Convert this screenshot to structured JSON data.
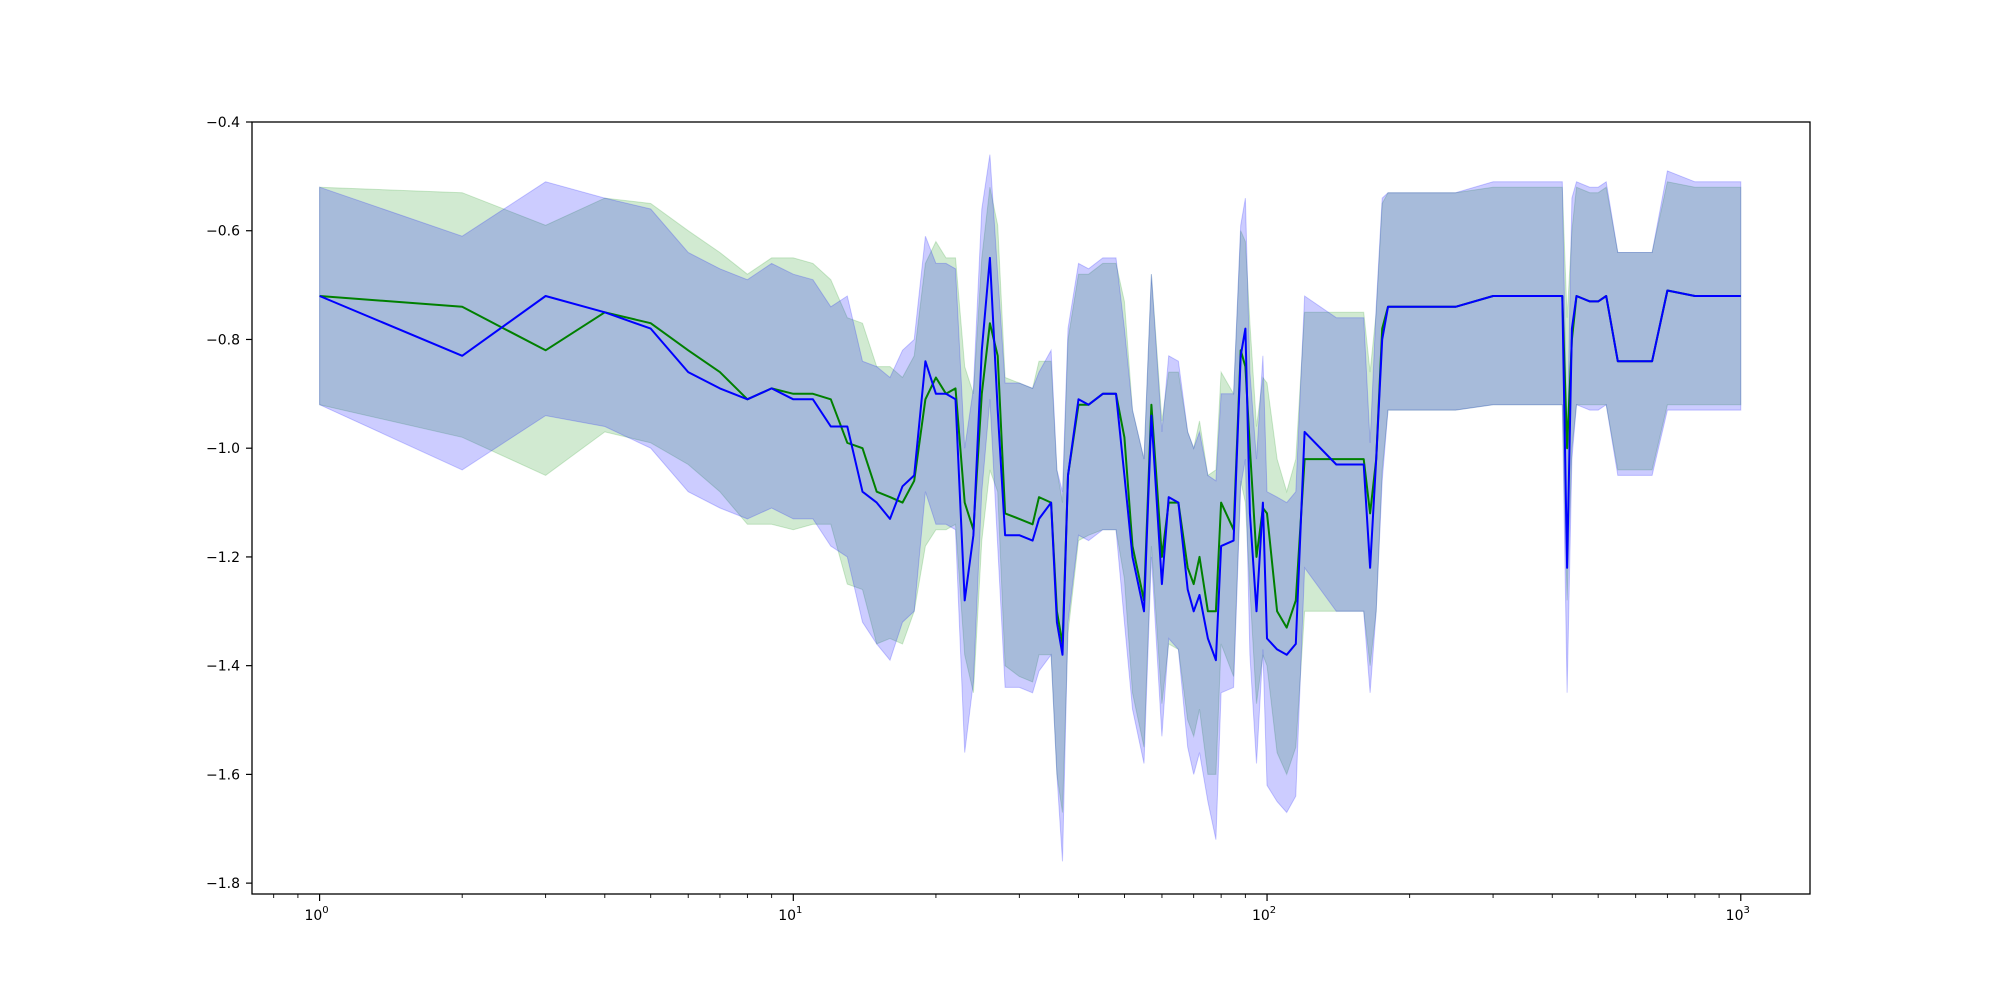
{
  "chart_data": {
    "type": "line",
    "title": "",
    "xlabel": "",
    "ylabel": "",
    "xscale": "log",
    "xlim": [
      0.72,
      1400
    ],
    "ylim": [
      -1.82,
      -0.4
    ],
    "x_ticks": [
      {
        "value": 1,
        "base": "10",
        "exp": "0"
      },
      {
        "value": 10,
        "base": "10",
        "exp": "1"
      },
      {
        "value": 100,
        "base": "10",
        "exp": "2"
      },
      {
        "value": 1000,
        "base": "10",
        "exp": "3"
      }
    ],
    "y_ticks": [
      {
        "value": -0.4,
        "label": "−0.4"
      },
      {
        "value": -0.6,
        "label": "−0.6"
      },
      {
        "value": -0.8,
        "label": "−0.8"
      },
      {
        "value": -1.0,
        "label": "−1.0"
      },
      {
        "value": -1.2,
        "label": "−1.2"
      },
      {
        "value": -1.4,
        "label": "−1.4"
      },
      {
        "value": -1.6,
        "label": "−1.6"
      },
      {
        "value": -1.8,
        "label": "−1.8"
      }
    ],
    "grid": false,
    "legend": "none",
    "series": [
      {
        "color": "#008000",
        "band_color": "#2ca02c",
        "band_alpha": 0.22,
        "x": [
          1,
          2,
          3,
          4,
          5,
          6,
          7,
          8,
          9,
          10,
          11,
          12,
          13,
          14,
          15,
          16,
          17,
          18,
          19,
          20,
          21,
          22,
          23,
          24,
          25,
          26,
          27,
          28,
          30,
          32,
          33,
          35,
          36,
          37,
          38,
          40,
          42,
          45,
          48,
          50,
          52,
          55,
          57,
          60,
          62,
          65,
          68,
          70,
          72,
          75,
          78,
          80,
          85,
          88,
          90,
          92,
          95,
          98,
          100,
          105,
          110,
          115,
          120,
          140,
          160,
          165,
          170,
          175,
          180,
          200,
          250,
          300,
          320,
          330,
          350,
          400,
          420,
          430,
          440,
          450,
          480,
          500,
          520,
          550,
          600,
          650,
          700,
          800,
          1000
        ],
        "y": [
          -0.72,
          -0.74,
          -0.82,
          -0.75,
          -0.77,
          -0.82,
          -0.86,
          -0.91,
          -0.89,
          -0.9,
          -0.9,
          -0.91,
          -0.99,
          -1.0,
          -1.08,
          -1.09,
          -1.1,
          -1.06,
          -0.91,
          -0.87,
          -0.9,
          -0.89,
          -1.1,
          -1.15,
          -0.9,
          -0.77,
          -0.83,
          -1.12,
          -1.13,
          -1.14,
          -1.09,
          -1.1,
          -1.3,
          -1.36,
          -1.05,
          -0.92,
          -0.92,
          -0.9,
          -0.9,
          -0.98,
          -1.18,
          -1.28,
          -0.92,
          -1.2,
          -1.1,
          -1.1,
          -1.22,
          -1.25,
          -1.2,
          -1.3,
          -1.3,
          -1.1,
          -1.15,
          -0.82,
          -0.85,
          -1.0,
          -1.2,
          -1.11,
          -1.12,
          -1.3,
          -1.33,
          -1.28,
          -1.02,
          -1.02,
          -1.02,
          -1.12,
          -1.02,
          -0.78,
          -0.74,
          -0.74,
          -0.74,
          -0.72,
          -0.72,
          -0.72,
          -0.72,
          -0.72,
          -0.72,
          -1.0,
          -0.8,
          -0.72,
          -0.73,
          -0.73,
          -0.72,
          -0.84,
          -0.84,
          -0.84,
          -0.71,
          -0.72,
          -0.72
        ],
        "lower": [
          -0.92,
          -0.98,
          -1.05,
          -0.97,
          -0.99,
          -1.03,
          -1.08,
          -1.14,
          -1.14,
          -1.15,
          -1.14,
          -1.14,
          -1.25,
          -1.26,
          -1.36,
          -1.35,
          -1.36,
          -1.3,
          -1.18,
          -1.15,
          -1.15,
          -1.14,
          -1.38,
          -1.45,
          -1.17,
          -1.04,
          -1.08,
          -1.4,
          -1.42,
          -1.43,
          -1.38,
          -1.38,
          -1.6,
          -1.67,
          -1.34,
          -1.17,
          -1.16,
          -1.15,
          -1.15,
          -1.24,
          -1.45,
          -1.55,
          -1.18,
          -1.47,
          -1.36,
          -1.37,
          -1.5,
          -1.53,
          -1.48,
          -1.6,
          -1.6,
          -1.36,
          -1.42,
          -1.06,
          -1.1,
          -1.26,
          -1.47,
          -1.38,
          -1.4,
          -1.56,
          -1.6,
          -1.55,
          -1.3,
          -1.3,
          -1.3,
          -1.4,
          -1.3,
          -1.04,
          -0.93,
          -0.93,
          -0.93,
          -0.92,
          -0.92,
          -0.92,
          -0.92,
          -0.92,
          -0.92,
          -1.28,
          -1.0,
          -0.92,
          -0.92,
          -0.92,
          -0.92,
          -1.04,
          -1.04,
          -1.04,
          -0.92,
          -0.92,
          -0.92
        ],
        "upper": [
          -0.52,
          -0.53,
          -0.59,
          -0.54,
          -0.55,
          -0.6,
          -0.64,
          -0.68,
          -0.65,
          -0.65,
          -0.66,
          -0.69,
          -0.76,
          -0.77,
          -0.85,
          -0.85,
          -0.87,
          -0.83,
          -0.66,
          -0.62,
          -0.65,
          -0.65,
          -0.85,
          -0.9,
          -0.65,
          -0.52,
          -0.59,
          -0.87,
          -0.88,
          -0.89,
          -0.84,
          -0.84,
          -1.04,
          -1.1,
          -0.8,
          -0.68,
          -0.68,
          -0.66,
          -0.66,
          -0.73,
          -0.93,
          -1.02,
          -0.68,
          -0.95,
          -0.86,
          -0.86,
          -0.97,
          -1.0,
          -0.95,
          -1.05,
          -1.04,
          -0.86,
          -0.9,
          -0.6,
          -0.62,
          -0.77,
          -0.96,
          -0.87,
          -0.88,
          -1.02,
          -1.08,
          -1.02,
          -0.75,
          -0.75,
          -0.75,
          -0.86,
          -0.75,
          -0.55,
          -0.53,
          -0.53,
          -0.53,
          -0.52,
          -0.52,
          -0.52,
          -0.52,
          -0.52,
          -0.52,
          -0.76,
          -0.6,
          -0.52,
          -0.53,
          -0.53,
          -0.52,
          -0.64,
          -0.64,
          -0.64,
          -0.51,
          -0.52,
          -0.52
        ]
      },
      {
        "color": "#0000ff",
        "band_color": "#0000ff",
        "band_alpha": 0.2,
        "x": [
          1,
          2,
          3,
          4,
          5,
          6,
          7,
          8,
          9,
          10,
          11,
          12,
          13,
          14,
          15,
          16,
          17,
          18,
          19,
          20,
          21,
          22,
          23,
          24,
          25,
          26,
          27,
          28,
          30,
          32,
          33,
          35,
          36,
          37,
          38,
          40,
          42,
          45,
          48,
          50,
          52,
          55,
          57,
          60,
          62,
          65,
          68,
          70,
          72,
          75,
          78,
          80,
          85,
          88,
          90,
          92,
          95,
          98,
          100,
          105,
          110,
          115,
          120,
          140,
          160,
          165,
          170,
          175,
          180,
          200,
          250,
          300,
          320,
          330,
          350,
          400,
          420,
          430,
          440,
          450,
          480,
          500,
          520,
          550,
          600,
          650,
          700,
          800,
          1000
        ],
        "y": [
          -0.72,
          -0.83,
          -0.72,
          -0.75,
          -0.78,
          -0.86,
          -0.89,
          -0.91,
          -0.89,
          -0.91,
          -0.91,
          -0.96,
          -0.96,
          -1.08,
          -1.1,
          -1.13,
          -1.07,
          -1.05,
          -0.84,
          -0.9,
          -0.9,
          -0.91,
          -1.28,
          -1.16,
          -0.82,
          -0.65,
          -0.93,
          -1.16,
          -1.16,
          -1.17,
          -1.13,
          -1.1,
          -1.32,
          -1.38,
          -1.05,
          -0.91,
          -0.92,
          -0.9,
          -0.9,
          -1.05,
          -1.2,
          -1.3,
          -0.94,
          -1.25,
          -1.09,
          -1.1,
          -1.26,
          -1.3,
          -1.27,
          -1.35,
          -1.39,
          -1.18,
          -1.17,
          -0.83,
          -0.78,
          -1.12,
          -1.3,
          -1.1,
          -1.35,
          -1.37,
          -1.38,
          -1.36,
          -0.97,
          -1.03,
          -1.03,
          -1.22,
          -1.02,
          -0.8,
          -0.74,
          -0.74,
          -0.74,
          -0.72,
          -0.72,
          -0.72,
          -0.72,
          -0.72,
          -0.72,
          -1.22,
          -0.78,
          -0.72,
          -0.73,
          -0.73,
          -0.72,
          -0.84,
          -0.84,
          -0.84,
          -0.71,
          -0.72,
          -0.72
        ],
        "lower": [
          -0.92,
          -1.04,
          -0.94,
          -0.96,
          -1.0,
          -1.08,
          -1.11,
          -1.13,
          -1.11,
          -1.13,
          -1.13,
          -1.18,
          -1.2,
          -1.32,
          -1.36,
          -1.39,
          -1.32,
          -1.3,
          -1.08,
          -1.14,
          -1.14,
          -1.15,
          -1.56,
          -1.43,
          -1.08,
          -0.91,
          -1.18,
          -1.44,
          -1.44,
          -1.45,
          -1.41,
          -1.38,
          -1.6,
          -1.76,
          -1.32,
          -1.16,
          -1.17,
          -1.15,
          -1.15,
          -1.32,
          -1.48,
          -1.58,
          -1.2,
          -1.53,
          -1.35,
          -1.37,
          -1.55,
          -1.6,
          -1.56,
          -1.65,
          -1.72,
          -1.45,
          -1.44,
          -1.07,
          -1.02,
          -1.38,
          -1.58,
          -1.37,
          -1.62,
          -1.65,
          -1.67,
          -1.64,
          -1.22,
          -1.3,
          -1.3,
          -1.45,
          -1.3,
          -1.06,
          -0.93,
          -0.93,
          -0.93,
          -0.92,
          -0.92,
          -0.92,
          -0.92,
          -0.92,
          -0.92,
          -1.45,
          -1.02,
          -0.92,
          -0.93,
          -0.93,
          -0.92,
          -1.05,
          -1.05,
          -1.05,
          -0.93,
          -0.93,
          -0.93
        ],
        "upper": [
          -0.52,
          -0.61,
          -0.51,
          -0.54,
          -0.56,
          -0.64,
          -0.67,
          -0.69,
          -0.66,
          -0.68,
          -0.69,
          -0.74,
          -0.72,
          -0.84,
          -0.85,
          -0.87,
          -0.82,
          -0.8,
          -0.61,
          -0.66,
          -0.66,
          -0.67,
          -1.0,
          -0.89,
          -0.56,
          -0.46,
          -0.68,
          -0.88,
          -0.88,
          -0.89,
          -0.86,
          -0.82,
          -1.04,
          -1.08,
          -0.78,
          -0.66,
          -0.67,
          -0.65,
          -0.65,
          -0.78,
          -0.93,
          -1.02,
          -0.68,
          -0.97,
          -0.83,
          -0.84,
          -0.97,
          -1.0,
          -0.97,
          -1.05,
          -1.06,
          -0.9,
          -0.9,
          -0.59,
          -0.54,
          -0.86,
          -1.02,
          -0.83,
          -1.08,
          -1.09,
          -1.1,
          -1.08,
          -0.72,
          -0.76,
          -0.76,
          -0.99,
          -0.74,
          -0.54,
          -0.53,
          -0.53,
          -0.53,
          -0.51,
          -0.51,
          -0.51,
          -0.51,
          -0.51,
          -0.51,
          -0.99,
          -0.54,
          -0.51,
          -0.52,
          -0.52,
          -0.51,
          -0.64,
          -0.64,
          -0.64,
          -0.49,
          -0.51,
          -0.51
        ]
      }
    ]
  }
}
